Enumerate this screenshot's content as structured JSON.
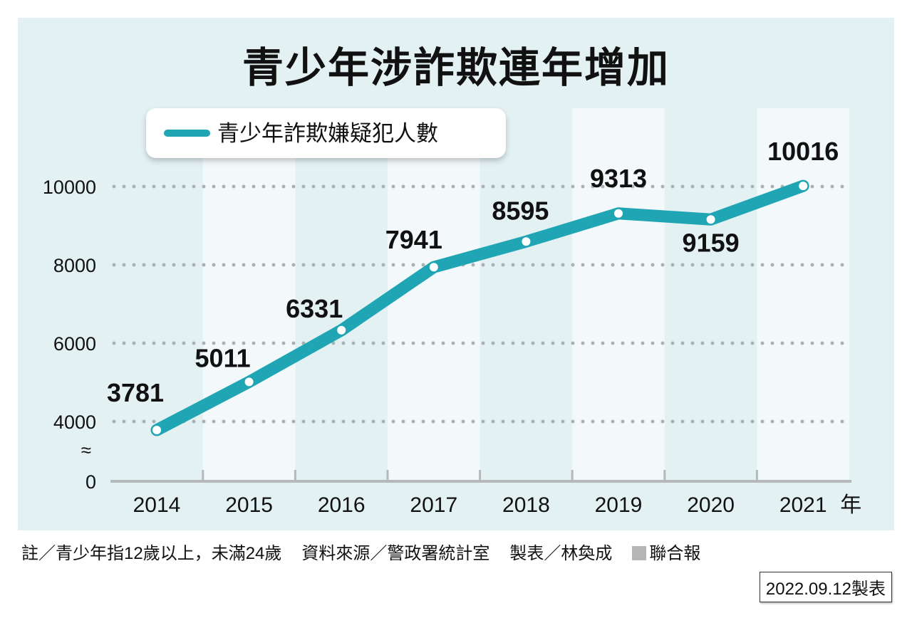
{
  "chart_data": {
    "type": "line",
    "title": "青少年涉詐欺連年增加",
    "legend": [
      "青少年詐欺嫌疑犯人數"
    ],
    "legend_position": "top-left",
    "x": [
      "2014",
      "2015",
      "2016",
      "2017",
      "2018",
      "2019",
      "2020",
      "2021"
    ],
    "x_unit": "年",
    "series": [
      {
        "name": "青少年詐欺嫌疑犯人數",
        "values": [
          3781,
          5011,
          6331,
          7941,
          8595,
          9313,
          9159,
          10016
        ]
      }
    ],
    "yticks": [
      "0",
      "4000",
      "6000",
      "8000",
      "10000"
    ],
    "axis_break": "≈",
    "ylim": [
      0,
      10000
    ],
    "grid": true,
    "colors": {
      "line": "#1fa5b3",
      "background": "#e3f1f3",
      "column": "#f3f9fa"
    }
  },
  "footer": {
    "note": "註／青少年指12歲以上，未滿24歲",
    "source": "資料來源／警政署統計室",
    "author": "製表／林奐成",
    "brand": "聯合報",
    "date": "2022.09.12製表"
  }
}
